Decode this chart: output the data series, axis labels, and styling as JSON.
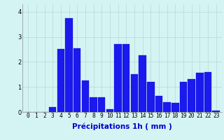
{
  "hours": [
    0,
    1,
    2,
    3,
    4,
    5,
    6,
    7,
    8,
    9,
    10,
    11,
    12,
    13,
    14,
    15,
    16,
    17,
    18,
    19,
    20,
    21,
    22,
    23
  ],
  "values": [
    0.0,
    0.0,
    0.0,
    0.2,
    2.5,
    3.75,
    2.55,
    1.25,
    0.6,
    0.6,
    0.1,
    2.7,
    2.7,
    1.5,
    2.25,
    1.2,
    0.65,
    0.4,
    0.35,
    1.2,
    1.3,
    1.55,
    1.6,
    0.05
  ],
  "bar_color": "#1a1aee",
  "bar_edge_color": "#0000bb",
  "background_color": "#d4f4f4",
  "grid_color": "#b8d8d8",
  "xlabel": "Précipitations 1h ( mm )",
  "ylim": [
    0,
    4.3
  ],
  "yticks": [
    0,
    1,
    2,
    3,
    4
  ],
  "xlabel_fontsize": 7.5,
  "tick_fontsize": 6.0
}
